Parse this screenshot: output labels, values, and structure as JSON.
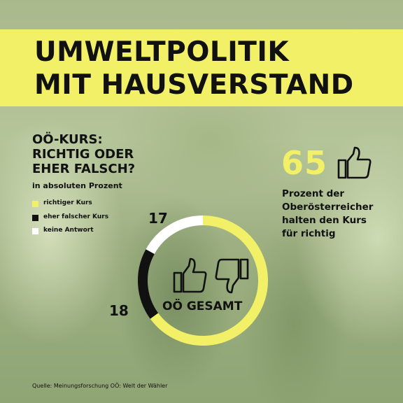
{
  "header": {
    "title_line1": "UMWELTPOLITIK",
    "title_line2": "MIT HAUSVERSTAND"
  },
  "chart_data": {
    "type": "pie",
    "title_lines": [
      "OÖ-KURS:",
      "RICHTIG ODER",
      "EHER FALSCH?"
    ],
    "subtitle": "in absoluten Prozent",
    "center_label": "OÖ GESAMT",
    "categories": [
      "richtiger Kurs",
      "eher falscher Kurs",
      "keine Antwort"
    ],
    "values": [
      65,
      18,
      17
    ],
    "colors": [
      "#f2f066",
      "#111111",
      "#ffffff"
    ],
    "shown_labels": {
      "eher falscher Kurs": "18",
      "keine Antwort": "17"
    },
    "legend_position": "left"
  },
  "highlight": {
    "value": "65",
    "text_lines": [
      "Prozent der",
      "Oberösterreicher",
      "halten den Kurs",
      "für richtig"
    ],
    "icon": "thumbs-up-icon"
  },
  "center_icons": [
    "thumbs-up-icon",
    "thumbs-down-icon"
  ],
  "source": "Quelle: Meinungsforschung OÖ: Welt der Wähler",
  "colors": {
    "accent": "#f2f066",
    "text": "#111111"
  }
}
